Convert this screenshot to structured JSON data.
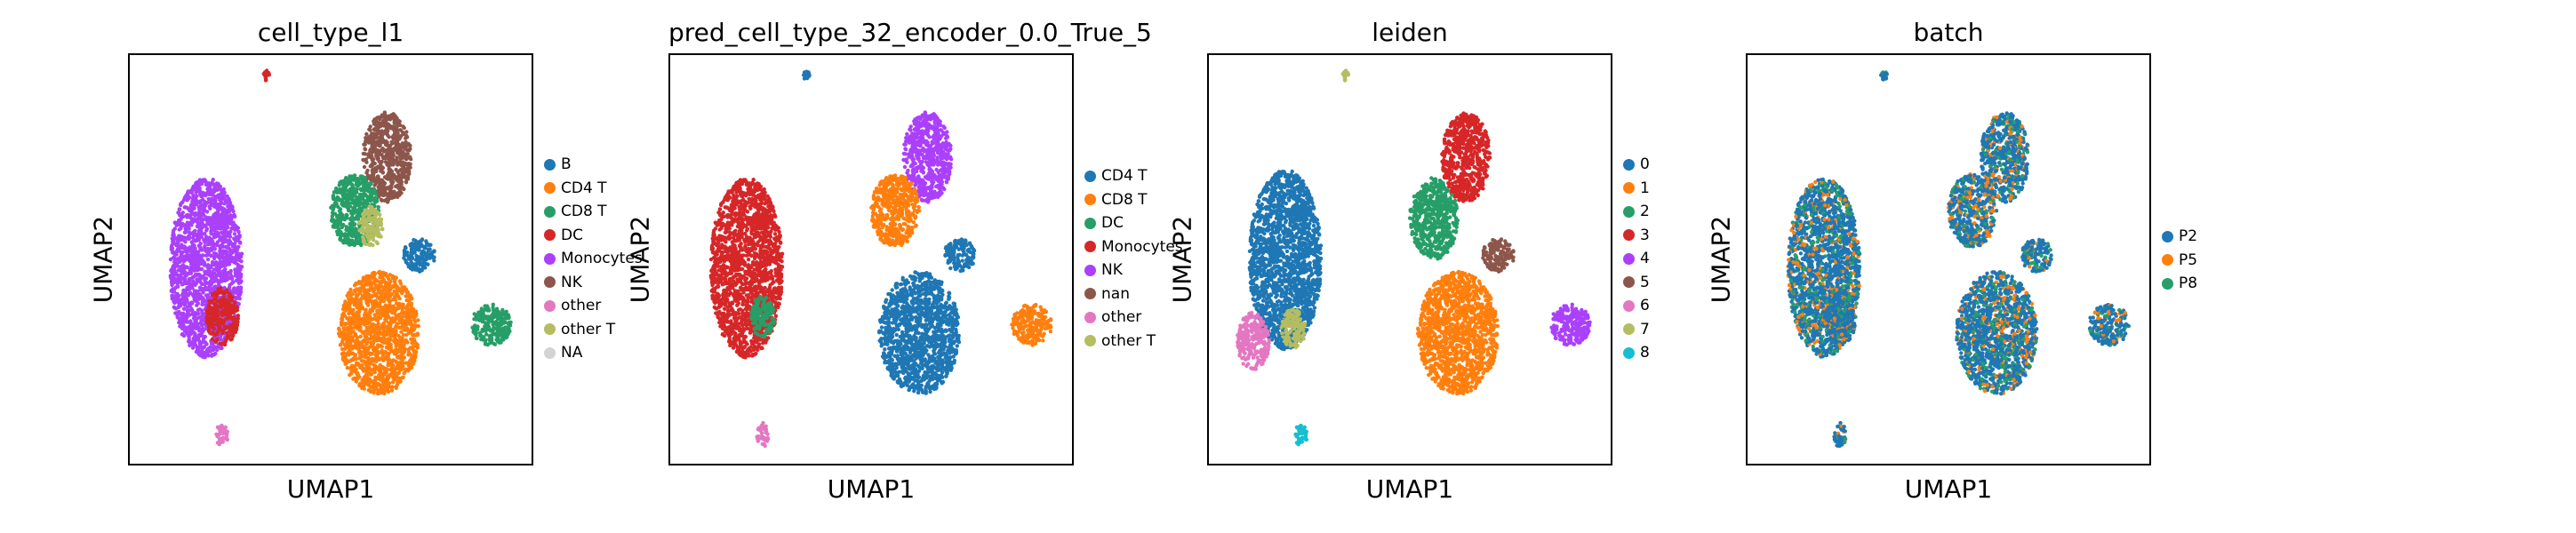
{
  "chart_data": [
    {
      "type": "scatter",
      "title": "cell_type_l1",
      "xlabel": "UMAP1",
      "ylabel": "UMAP2",
      "grid": false,
      "legend_position": "right",
      "legend": [
        {
          "label": "B",
          "color": "#1f77b4"
        },
        {
          "label": "CD4 T",
          "color": "#ff7f0e"
        },
        {
          "label": "CD8 T",
          "color": "#279e68"
        },
        {
          "label": "DC",
          "color": "#d62728"
        },
        {
          "label": "Monocytes",
          "color": "#aa40fc"
        },
        {
          "label": "NK",
          "color": "#8c564b"
        },
        {
          "label": "other",
          "color": "#e377c2"
        },
        {
          "label": "other T",
          "color": "#b5bd61"
        },
        {
          "label": "NA",
          "color": "#d3d3d3"
        }
      ],
      "clusters": [
        {
          "color": "#aa40fc",
          "cx": 0.19,
          "cy": 0.52,
          "rx": 0.09,
          "ry": 0.22
        },
        {
          "color": "#d62728",
          "cx": 0.23,
          "cy": 0.64,
          "rx": 0.04,
          "ry": 0.07
        },
        {
          "color": "#8c564b",
          "cx": 0.64,
          "cy": 0.25,
          "rx": 0.06,
          "ry": 0.11
        },
        {
          "color": "#279e68",
          "cx": 0.56,
          "cy": 0.38,
          "rx": 0.06,
          "ry": 0.09
        },
        {
          "color": "#b5bd61",
          "cx": 0.6,
          "cy": 0.42,
          "rx": 0.03,
          "ry": 0.05
        },
        {
          "color": "#ff7f0e",
          "cx": 0.62,
          "cy": 0.68,
          "rx": 0.1,
          "ry": 0.15
        },
        {
          "color": "#1f77b4",
          "cx": 0.72,
          "cy": 0.49,
          "rx": 0.04,
          "ry": 0.04
        },
        {
          "color": "#279e68",
          "cx": 0.9,
          "cy": 0.66,
          "rx": 0.05,
          "ry": 0.05
        },
        {
          "color": "#e377c2",
          "cx": 0.23,
          "cy": 0.93,
          "rx": 0.015,
          "ry": 0.03
        },
        {
          "color": "#d62728",
          "cx": 0.34,
          "cy": 0.05,
          "rx": 0.008,
          "ry": 0.012
        }
      ]
    },
    {
      "type": "scatter",
      "title": "pred_cell_type_32_encoder_0.0_True_5",
      "xlabel": "UMAP1",
      "ylabel": "UMAP2",
      "grid": false,
      "legend_position": "right",
      "legend": [
        {
          "label": "CD4 T",
          "color": "#1f77b4"
        },
        {
          "label": "CD8 T",
          "color": "#ff7f0e"
        },
        {
          "label": "DC",
          "color": "#279e68"
        },
        {
          "label": "Monocytes",
          "color": "#d62728"
        },
        {
          "label": "NK",
          "color": "#aa40fc"
        },
        {
          "label": "nan",
          "color": "#8c564b"
        },
        {
          "label": "other",
          "color": "#e377c2"
        },
        {
          "label": "other T",
          "color": "#b5bd61"
        }
      ],
      "clusters": [
        {
          "color": "#d62728",
          "cx": 0.19,
          "cy": 0.52,
          "rx": 0.09,
          "ry": 0.22
        },
        {
          "color": "#279e68",
          "cx": 0.23,
          "cy": 0.64,
          "rx": 0.03,
          "ry": 0.05
        },
        {
          "color": "#aa40fc",
          "cx": 0.64,
          "cy": 0.25,
          "rx": 0.06,
          "ry": 0.11
        },
        {
          "color": "#ff7f0e",
          "cx": 0.56,
          "cy": 0.38,
          "rx": 0.06,
          "ry": 0.09
        },
        {
          "color": "#1f77b4",
          "cx": 0.62,
          "cy": 0.68,
          "rx": 0.1,
          "ry": 0.15
        },
        {
          "color": "#1f77b4",
          "cx": 0.72,
          "cy": 0.49,
          "rx": 0.04,
          "ry": 0.04
        },
        {
          "color": "#ff7f0e",
          "cx": 0.9,
          "cy": 0.66,
          "rx": 0.05,
          "ry": 0.05
        },
        {
          "color": "#e377c2",
          "cx": 0.23,
          "cy": 0.93,
          "rx": 0.015,
          "ry": 0.03
        },
        {
          "color": "#1f77b4",
          "cx": 0.34,
          "cy": 0.05,
          "rx": 0.008,
          "ry": 0.012
        }
      ]
    },
    {
      "type": "scatter",
      "title": "leiden",
      "xlabel": "UMAP1",
      "ylabel": "UMAP2",
      "grid": false,
      "legend_position": "right",
      "legend": [
        {
          "label": "0",
          "color": "#1f77b4"
        },
        {
          "label": "1",
          "color": "#ff7f0e"
        },
        {
          "label": "2",
          "color": "#279e68"
        },
        {
          "label": "3",
          "color": "#d62728"
        },
        {
          "label": "4",
          "color": "#aa40fc"
        },
        {
          "label": "5",
          "color": "#8c564b"
        },
        {
          "label": "6",
          "color": "#e377c2"
        },
        {
          "label": "7",
          "color": "#b5bd61"
        },
        {
          "label": "8",
          "color": "#17becf"
        }
      ],
      "clusters": [
        {
          "color": "#1f77b4",
          "cx": 0.19,
          "cy": 0.5,
          "rx": 0.09,
          "ry": 0.22
        },
        {
          "color": "#e377c2",
          "cx": 0.11,
          "cy": 0.7,
          "rx": 0.04,
          "ry": 0.07
        },
        {
          "color": "#b5bd61",
          "cx": 0.21,
          "cy": 0.67,
          "rx": 0.03,
          "ry": 0.05
        },
        {
          "color": "#d62728",
          "cx": 0.64,
          "cy": 0.25,
          "rx": 0.06,
          "ry": 0.11
        },
        {
          "color": "#279e68",
          "cx": 0.56,
          "cy": 0.4,
          "rx": 0.06,
          "ry": 0.1
        },
        {
          "color": "#ff7f0e",
          "cx": 0.62,
          "cy": 0.68,
          "rx": 0.1,
          "ry": 0.15
        },
        {
          "color": "#8c564b",
          "cx": 0.72,
          "cy": 0.49,
          "rx": 0.04,
          "ry": 0.04
        },
        {
          "color": "#aa40fc",
          "cx": 0.9,
          "cy": 0.66,
          "rx": 0.05,
          "ry": 0.05
        },
        {
          "color": "#17becf",
          "cx": 0.23,
          "cy": 0.93,
          "rx": 0.015,
          "ry": 0.03
        },
        {
          "color": "#b5bd61",
          "cx": 0.34,
          "cy": 0.05,
          "rx": 0.008,
          "ry": 0.012
        }
      ]
    },
    {
      "type": "scatter",
      "title": "batch",
      "xlabel": "UMAP1",
      "ylabel": "UMAP2",
      "grid": false,
      "legend_position": "right",
      "legend": [
        {
          "label": "P2",
          "color": "#1f77b4"
        },
        {
          "label": "P5",
          "color": "#ff7f0e"
        },
        {
          "label": "P8",
          "color": "#279e68"
        }
      ],
      "mixed": true,
      "clusters": [
        {
          "color": "#1f77b4",
          "cx": 0.19,
          "cy": 0.52,
          "rx": 0.09,
          "ry": 0.22
        },
        {
          "color": "#1f77b4",
          "cx": 0.23,
          "cy": 0.64,
          "rx": 0.04,
          "ry": 0.07
        },
        {
          "color": "#1f77b4",
          "cx": 0.64,
          "cy": 0.25,
          "rx": 0.06,
          "ry": 0.11
        },
        {
          "color": "#1f77b4",
          "cx": 0.56,
          "cy": 0.38,
          "rx": 0.06,
          "ry": 0.09
        },
        {
          "color": "#1f77b4",
          "cx": 0.62,
          "cy": 0.68,
          "rx": 0.1,
          "ry": 0.15
        },
        {
          "color": "#1f77b4",
          "cx": 0.72,
          "cy": 0.49,
          "rx": 0.04,
          "ry": 0.04
        },
        {
          "color": "#1f77b4",
          "cx": 0.9,
          "cy": 0.66,
          "rx": 0.05,
          "ry": 0.05
        },
        {
          "color": "#1f77b4",
          "cx": 0.23,
          "cy": 0.93,
          "rx": 0.015,
          "ry": 0.03
        },
        {
          "color": "#1f77b4",
          "cx": 0.34,
          "cy": 0.05,
          "rx": 0.008,
          "ry": 0.012
        }
      ]
    }
  ]
}
